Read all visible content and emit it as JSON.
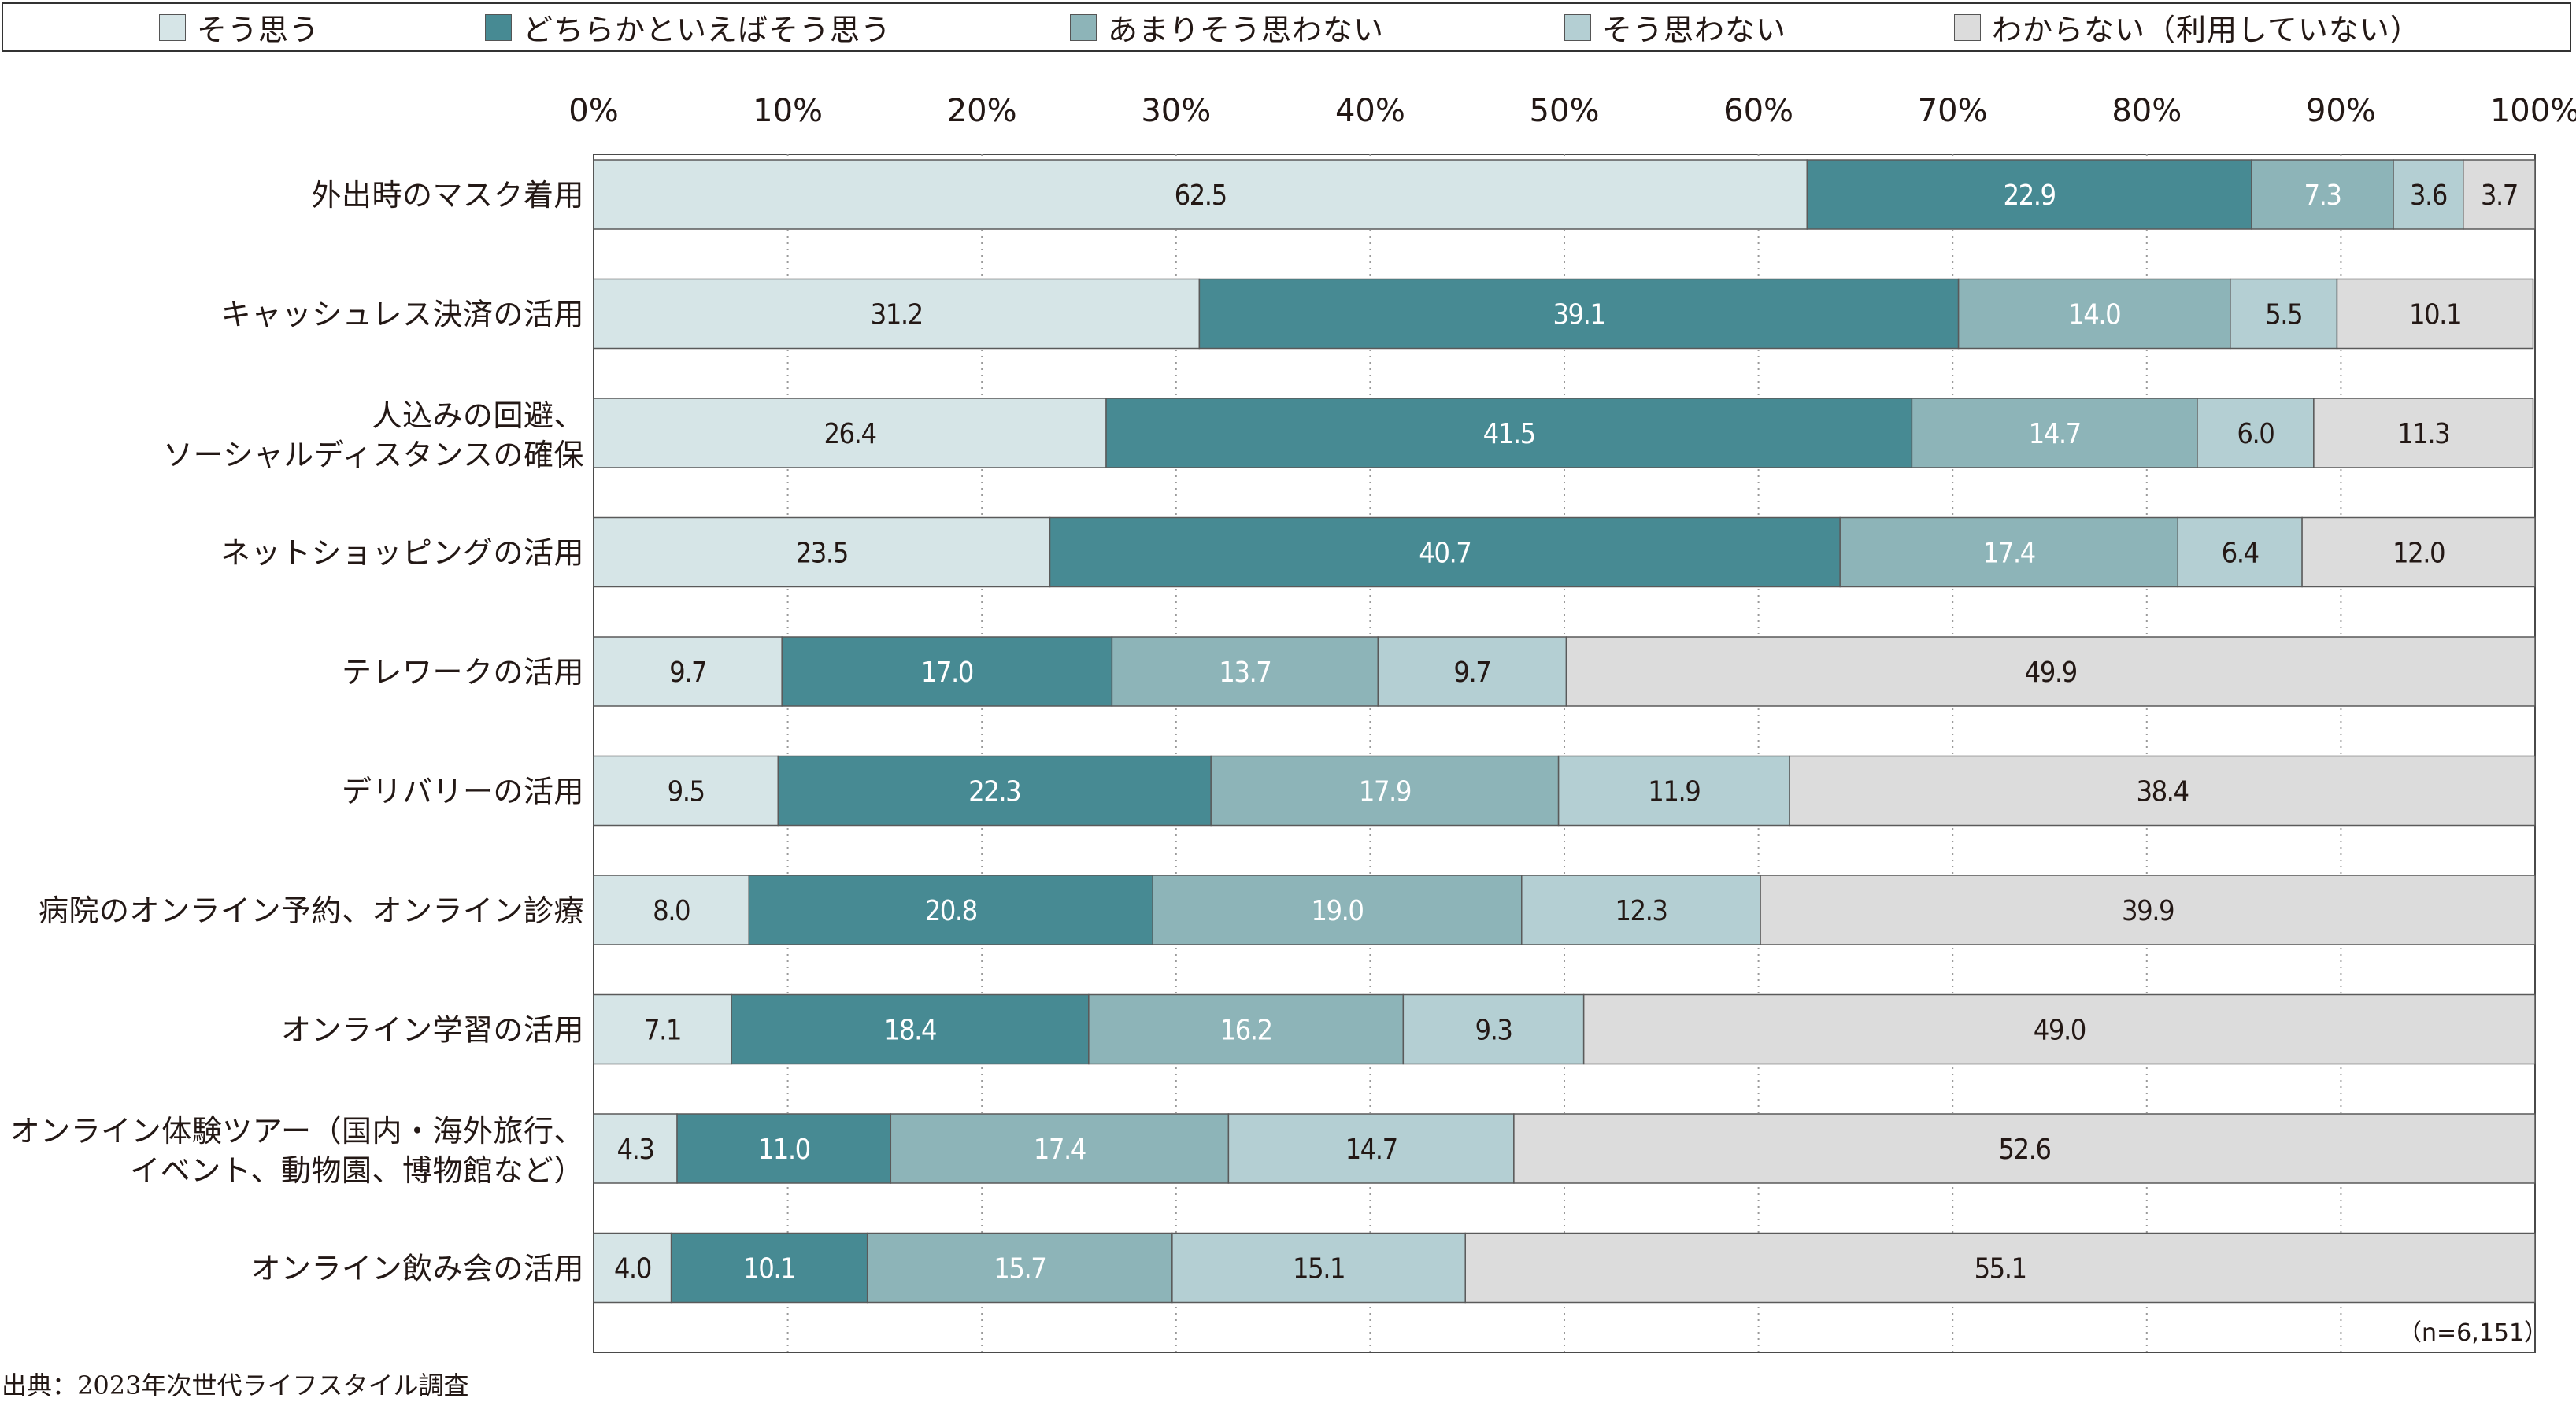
{
  "chart_data": {
    "type": "bar",
    "orientation": "horizontal",
    "stacked": true,
    "unit": "%",
    "xlim": [
      0,
      100
    ],
    "x_ticks": [
      "0%",
      "10%",
      "20%",
      "30%",
      "40%",
      "50%",
      "60%",
      "70%",
      "80%",
      "90%",
      "100%"
    ],
    "grid": "vertical dotted",
    "legend_position": "top",
    "categories": [
      [
        "外出時のマスク着用"
      ],
      [
        "キャッシュレス決済の活用"
      ],
      [
        "人込みの回避、",
        "ソーシャルディスタンスの確保"
      ],
      [
        "ネットショッピングの活用"
      ],
      [
        "テレワークの活用"
      ],
      [
        "デリバリーの活用"
      ],
      [
        "病院のオンライン予約、オンライン診療"
      ],
      [
        "オンライン学習の活用"
      ],
      [
        "オンライン体験ツアー（国内・海外旅行、",
        "イベント、動物園、博物館など）"
      ],
      [
        "オンライン飲み会の活用"
      ]
    ],
    "series": [
      {
        "name": "そう思う",
        "color": "#d6e5e7",
        "text_color": "#231815",
        "values": [
          62.5,
          31.2,
          26.4,
          23.5,
          9.7,
          9.5,
          8.0,
          7.1,
          4.3,
          4.0
        ]
      },
      {
        "name": "どちらかといえばそう思う",
        "color": "#478a93",
        "text_color": "#ffffff",
        "values": [
          22.9,
          39.1,
          41.5,
          40.7,
          17.0,
          22.3,
          20.8,
          18.4,
          11.0,
          10.1
        ]
      },
      {
        "name": "あまりそう思わない",
        "color": "#8db4b8",
        "text_color": "#ffffff",
        "values": [
          7.3,
          14.0,
          14.7,
          17.4,
          13.7,
          17.9,
          19.0,
          16.2,
          17.4,
          15.7
        ]
      },
      {
        "name": "そう思わない",
        "color": "#b4cfd3",
        "text_color": "#231815",
        "values": [
          3.6,
          5.5,
          6.0,
          6.4,
          9.7,
          11.9,
          12.3,
          9.3,
          14.7,
          15.1
        ]
      },
      {
        "name": "わからない（利用していない）",
        "color": "#dcdcdc",
        "text_color": "#231815",
        "values": [
          3.7,
          10.1,
          11.3,
          12.0,
          49.9,
          38.4,
          39.9,
          49.0,
          52.6,
          55.1
        ]
      }
    ],
    "note": "（n=6,151）",
    "source": "出典：2023年次世代ライフスタイル調査"
  }
}
